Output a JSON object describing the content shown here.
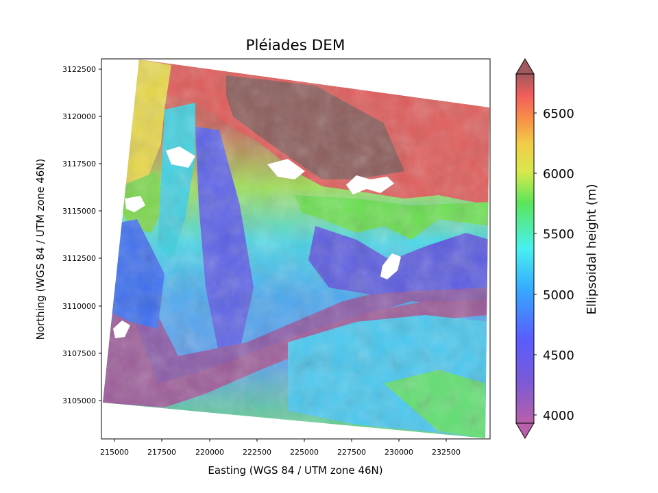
{
  "title": "Pléiades DEM",
  "map": {
    "xlabel": "Easting (WGS 84 / UTM zone 46N)",
    "ylabel": "Northing (WGS 84 / UTM zone 46N)",
    "x_ticks": [
      "215000",
      "217500",
      "220000",
      "222500",
      "225000",
      "227500",
      "230000",
      "232500"
    ],
    "y_ticks": [
      "3105000",
      "3107500",
      "3110000",
      "3112500",
      "3115000",
      "3117500",
      "3120000",
      "3122500"
    ],
    "colormap": "rainbow with hillshade",
    "nodata_color": "#ffffff"
  },
  "colorbar": {
    "label": "Ellipsoidal height (m)",
    "ticks": [
      "4000",
      "4500",
      "5000",
      "5500",
      "6000",
      "6500"
    ],
    "range_m": [
      3850,
      6800
    ],
    "extend": "both"
  }
}
